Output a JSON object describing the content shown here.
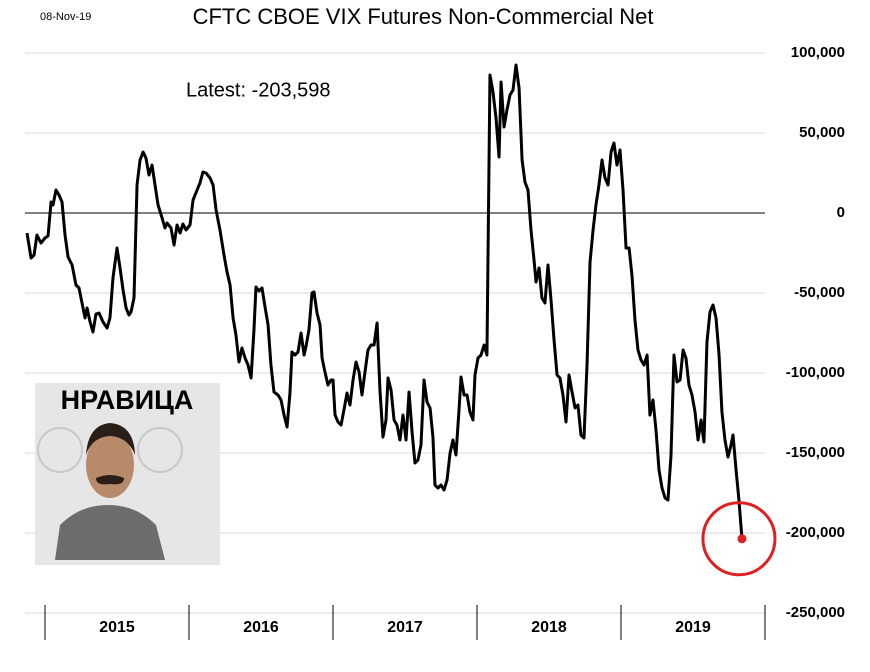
{
  "chart_data": {
    "type": "line",
    "title": "CFTC CBOE VIX Futures Non-Commercial Net",
    "date": "08-Nov-19",
    "annotation": "Latest:  -203,598",
    "image_caption": "НРАВИЦА",
    "color": "#000000",
    "highlight_color": "#e02020",
    "grid": true,
    "xlim": [
      2014.861,
      2020.0
    ],
    "ylim": [
      -250000,
      100000
    ],
    "yticks": [
      {
        "value": -250000,
        "label": "-250,000"
      },
      {
        "value": -200000,
        "label": "-200,000"
      },
      {
        "value": -150000,
        "label": "-150,000"
      },
      {
        "value": -100000,
        "label": "-100,000"
      },
      {
        "value": -50000,
        "label": "-50,000"
      },
      0,
      {
        "value": 50000,
        "label": "50,000"
      },
      {
        "value": 100000,
        "label": "100,000"
      }
    ],
    "xticks": [
      {
        "value": 2015.5,
        "label": "2015"
      },
      {
        "value": 2016.5,
        "label": "2016"
      },
      {
        "value": 2017.5,
        "label": "2017"
      },
      {
        "value": 2018.5,
        "label": "2018"
      },
      {
        "value": 2019.5,
        "label": "2019"
      }
    ],
    "year_separators": [
      2015,
      2016,
      2017,
      2018,
      2019,
      2020
    ],
    "x": [
      2014.875,
      2014.903,
      2014.924,
      2014.944,
      2014.972,
      2015.0,
      2015.021,
      2015.042,
      2015.056,
      2015.076,
      2015.097,
      2015.118,
      2015.139,
      2015.16,
      2015.188,
      2015.215,
      2015.236,
      2015.257,
      2015.278,
      2015.292,
      2015.313,
      2015.333,
      2015.354,
      2015.375,
      2015.403,
      2015.431,
      2015.451,
      2015.472,
      2015.5,
      2015.521,
      2015.542,
      2015.563,
      2015.583,
      2015.597,
      2015.618,
      2015.639,
      2015.66,
      2015.681,
      2015.701,
      2015.722,
      2015.743,
      2015.764,
      2015.785,
      2015.813,
      2015.833,
      2015.847,
      2015.875,
      2015.896,
      2015.917,
      2015.938,
      2015.958,
      2015.979,
      2016.007,
      2016.028,
      2016.056,
      2016.076,
      2016.097,
      2016.118,
      2016.146,
      2016.167,
      2016.188,
      2016.215,
      2016.243,
      2016.264,
      2016.285,
      2016.306,
      2016.326,
      2016.347,
      2016.368,
      2016.389,
      2016.41,
      2016.431,
      2016.451,
      2016.465,
      2016.486,
      2016.507,
      2016.528,
      2016.549,
      2016.569,
      2016.59,
      2016.618,
      2016.639,
      2016.66,
      2016.681,
      2016.701,
      2016.715,
      2016.736,
      2016.757,
      2016.778,
      2016.799,
      2016.813,
      2016.833,
      2016.854,
      2016.868,
      2016.889,
      2016.91,
      2016.924,
      2016.944,
      2016.965,
      2016.986,
      2017.0,
      2017.014,
      2017.035,
      2017.056,
      2017.076,
      2017.097,
      2017.118,
      2017.139,
      2017.16,
      2017.181,
      2017.201,
      2017.222,
      2017.243,
      2017.264,
      2017.285,
      2017.306,
      2017.326,
      2017.347,
      2017.368,
      2017.382,
      2017.403,
      2017.424,
      2017.444,
      2017.465,
      2017.486,
      2017.507,
      2017.528,
      2017.549,
      2017.569,
      2017.59,
      2017.611,
      2017.632,
      2017.653,
      2017.674,
      2017.694,
      2017.708,
      2017.729,
      2017.75,
      2017.771,
      2017.792,
      2017.813,
      2017.833,
      2017.854,
      2017.875,
      2017.889,
      2017.91,
      2017.931,
      2017.951,
      2017.972,
      2017.986,
      2018.007,
      2018.028,
      2018.049,
      2018.069,
      2018.09,
      2018.111,
      2018.132,
      2018.153,
      2018.167,
      2018.188,
      2018.208,
      2018.229,
      2018.25,
      2018.271,
      2018.292,
      2018.313,
      2018.333,
      2018.354,
      2018.375,
      2018.396,
      2018.41,
      2018.431,
      2018.451,
      2018.472,
      2018.493,
      2018.514,
      2018.535,
      2018.556,
      2018.576,
      2018.597,
      2018.618,
      2018.639,
      2018.66,
      2018.681,
      2018.701,
      2018.722,
      2018.743,
      2018.764,
      2018.785,
      2018.806,
      2018.826,
      2018.847,
      2018.868,
      2018.889,
      2018.91,
      2018.931,
      2018.951,
      2018.972,
      2018.993,
      2019.014,
      2019.035,
      2019.056,
      2019.076,
      2019.097,
      2019.118,
      2019.139,
      2019.16,
      2019.181,
      2019.201,
      2019.222,
      2019.243,
      2019.264,
      2019.285,
      2019.306,
      2019.326,
      2019.347,
      2019.368,
      2019.389,
      2019.41,
      2019.431,
      2019.451,
      2019.472,
      2019.493,
      2019.514,
      2019.535,
      2019.556,
      2019.576,
      2019.597,
      2019.618,
      2019.639,
      2019.66,
      2019.681,
      2019.701,
      2019.722,
      2019.743,
      2019.764,
      2019.778,
      2019.799,
      2019.819,
      2019.84
    ],
    "values": [
      -12500,
      -28125,
      -26250,
      -13750,
      -18750,
      -15625,
      -14375,
      6875,
      5000,
      14375,
      11250,
      6875,
      -13750,
      -27500,
      -32500,
      -45000,
      -46875,
      -56250,
      -65625,
      -59375,
      -68125,
      -74375,
      -63125,
      -62500,
      -68125,
      -71875,
      -65625,
      -40625,
      -21875,
      -34375,
      -48125,
      -59375,
      -63750,
      -61875,
      -53125,
      17500,
      33125,
      38125,
      34375,
      23750,
      30000,
      17500,
      5000,
      -3125,
      -9375,
      -6250,
      -9375,
      -20000,
      -7500,
      -12500,
      -6875,
      -10625,
      -7500,
      8125,
      14375,
      18750,
      25625,
      25000,
      21875,
      17500,
      1875,
      -10625,
      -26250,
      -36875,
      -45000,
      -65625,
      -76250,
      -93125,
      -84375,
      -90625,
      -95000,
      -103125,
      -73125,
      -46250,
      -48750,
      -46875,
      -58750,
      -70000,
      -95000,
      -111875,
      -113750,
      -116875,
      -126250,
      -133750,
      -112500,
      -86875,
      -88750,
      -86875,
      -75000,
      -88750,
      -83125,
      -73125,
      -50000,
      -49375,
      -62500,
      -70000,
      -90625,
      -99375,
      -107500,
      -104375,
      -104375,
      -126250,
      -130625,
      -132500,
      -123125,
      -112500,
      -120000,
      -104375,
      -93125,
      -99375,
      -113750,
      -99375,
      -85625,
      -82500,
      -82500,
      -68750,
      -110625,
      -140000,
      -129375,
      -103125,
      -110625,
      -129375,
      -132500,
      -141875,
      -126250,
      -141875,
      -111875,
      -136875,
      -156250,
      -154375,
      -145000,
      -104375,
      -118125,
      -121875,
      -140000,
      -170000,
      -171875,
      -170000,
      -173125,
      -166875,
      -150000,
      -141875,
      -151250,
      -123125,
      -102500,
      -113750,
      -113750,
      -124375,
      -129375,
      -101250,
      -90625,
      -88750,
      -82500,
      -88750,
      86250,
      75625,
      59375,
      35000,
      81875,
      53750,
      64375,
      73750,
      76875,
      92500,
      78125,
      33125,
      19375,
      14375,
      -10625,
      -29375,
      -43125,
      -34375,
      -53125,
      -56250,
      -32500,
      -54375,
      -79375,
      -101250,
      -103125,
      -113750,
      -130625,
      -101250,
      -111875,
      -121875,
      -120000,
      -138750,
      -140625,
      -95000,
      -30625,
      -10625,
      5000,
      17500,
      33125,
      21875,
      17500,
      38125,
      43750,
      30000,
      39375,
      14375,
      -21875,
      -21875,
      -38750,
      -66875,
      -85625,
      -91875,
      -95000,
      -88750,
      -126250,
      -116875,
      -135625,
      -160625,
      -171875,
      -178125,
      -179375,
      -151875,
      -88750,
      -105625,
      -104375,
      -85625,
      -90625,
      -107500,
      -113750,
      -124375,
      -141875,
      -129375,
      -143125,
      -80625,
      -61875,
      -57500,
      -65625,
      -88750,
      -124375,
      -141875,
      -152500,
      -145000,
      -138750,
      -160625,
      -179375,
      -203598
    ]
  }
}
